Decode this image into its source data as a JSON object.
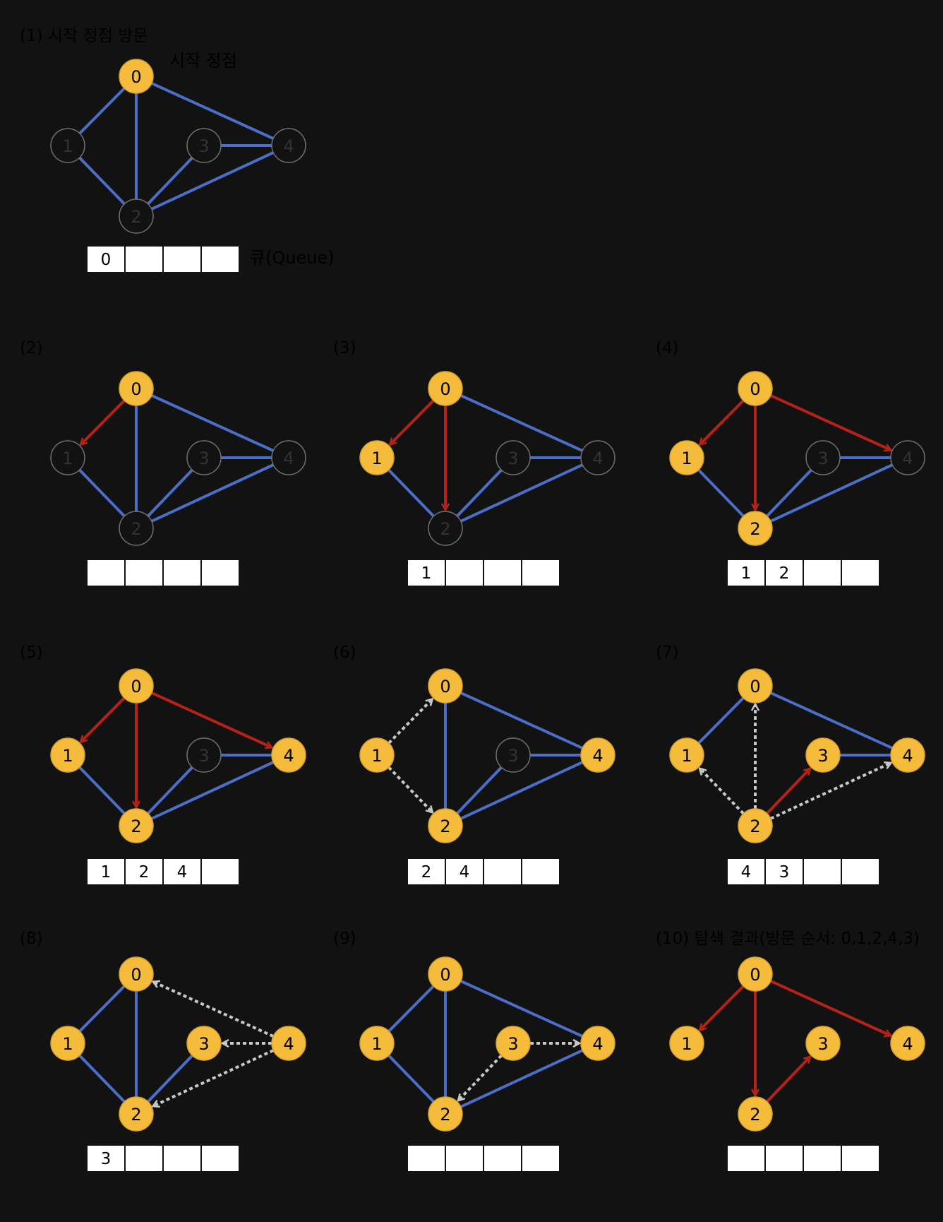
{
  "colors": {
    "background": "#121212",
    "visited": "#F5BC3C",
    "visited_stroke": "#D4A02C",
    "unvisited": "#121212",
    "unvisited_stroke": "#707070",
    "edge": "#4B6FC7",
    "tree_edge": "#B52218",
    "check_edge": "#C8C8C8",
    "queue_cell": "#FFFFFF",
    "text": "#000000"
  },
  "annotations": {
    "start_label": "시작 정점",
    "queue_label": "큐(Queue)"
  },
  "panels": [
    {
      "title": "(1) 시작 정점 방문",
      "visited": [
        "0"
      ],
      "edges": [
        [
          "0",
          "1"
        ],
        [
          "0",
          "2"
        ],
        [
          "0",
          "4"
        ],
        [
          "1",
          "2"
        ],
        [
          "2",
          "3"
        ],
        [
          "3",
          "4"
        ],
        [
          "2",
          "4"
        ]
      ],
      "tree": [],
      "check": [],
      "queue": [
        "0",
        "",
        "",
        ""
      ]
    },
    {
      "title": "(2)",
      "visited": [
        "0"
      ],
      "edges": [
        [
          "0",
          "2"
        ],
        [
          "0",
          "4"
        ],
        [
          "1",
          "2"
        ],
        [
          "2",
          "3"
        ],
        [
          "3",
          "4"
        ],
        [
          "2",
          "4"
        ]
      ],
      "tree": [
        [
          "0",
          "1"
        ]
      ],
      "check": [],
      "queue": [
        "",
        "",
        "",
        ""
      ]
    },
    {
      "title": "(3)",
      "visited": [
        "0",
        "1"
      ],
      "edges": [
        [
          "0",
          "4"
        ],
        [
          "1",
          "2"
        ],
        [
          "2",
          "3"
        ],
        [
          "3",
          "4"
        ],
        [
          "2",
          "4"
        ]
      ],
      "tree": [
        [
          "0",
          "1"
        ],
        [
          "0",
          "2"
        ]
      ],
      "check": [],
      "queue": [
        "1",
        "",
        "",
        ""
      ]
    },
    {
      "title": "(4)",
      "visited": [
        "0",
        "1",
        "2"
      ],
      "edges": [
        [
          "1",
          "2"
        ],
        [
          "2",
          "3"
        ],
        [
          "3",
          "4"
        ],
        [
          "2",
          "4"
        ]
      ],
      "tree": [
        [
          "0",
          "1"
        ],
        [
          "0",
          "2"
        ],
        [
          "0",
          "4"
        ]
      ],
      "check": [],
      "queue": [
        "1",
        "2",
        "",
        ""
      ]
    },
    {
      "title": "(5)",
      "visited": [
        "0",
        "1",
        "2",
        "4"
      ],
      "edges": [
        [
          "1",
          "2"
        ],
        [
          "2",
          "3"
        ],
        [
          "3",
          "4"
        ],
        [
          "2",
          "4"
        ]
      ],
      "tree": [
        [
          "0",
          "1"
        ],
        [
          "0",
          "2"
        ],
        [
          "0",
          "4"
        ]
      ],
      "check": [],
      "queue": [
        "1",
        "2",
        "4",
        ""
      ]
    },
    {
      "title": "(6)",
      "visited": [
        "0",
        "1",
        "2",
        "4"
      ],
      "edges": [
        [
          "0",
          "2"
        ],
        [
          "0",
          "4"
        ],
        [
          "2",
          "3"
        ],
        [
          "3",
          "4"
        ],
        [
          "2",
          "4"
        ]
      ],
      "tree": [],
      "check": [
        [
          "1",
          "0"
        ],
        [
          "1",
          "2"
        ]
      ],
      "queue": [
        "2",
        "4",
        "",
        ""
      ]
    },
    {
      "title": "(7)",
      "visited": [
        "0",
        "1",
        "2",
        "3",
        "4"
      ],
      "edges": [
        [
          "0",
          "1"
        ],
        [
          "0",
          "4"
        ],
        [
          "3",
          "4"
        ]
      ],
      "tree": [
        [
          "2",
          "3"
        ]
      ],
      "check": [
        [
          "2",
          "1"
        ],
        [
          "2",
          "0"
        ],
        [
          "2",
          "4"
        ]
      ],
      "queue": [
        "4",
        "3",
        "",
        ""
      ]
    },
    {
      "title": "(8)",
      "visited": [
        "0",
        "1",
        "2",
        "3",
        "4"
      ],
      "edges": [
        [
          "0",
          "1"
        ],
        [
          "0",
          "2"
        ],
        [
          "1",
          "2"
        ],
        [
          "2",
          "3"
        ]
      ],
      "tree": [],
      "check": [
        [
          "4",
          "0"
        ],
        [
          "4",
          "3"
        ],
        [
          "4",
          "2"
        ]
      ],
      "queue": [
        "3",
        "",
        "",
        ""
      ]
    },
    {
      "title": "(9)",
      "visited": [
        "0",
        "1",
        "2",
        "3",
        "4"
      ],
      "edges": [
        [
          "0",
          "1"
        ],
        [
          "0",
          "2"
        ],
        [
          "0",
          "4"
        ],
        [
          "1",
          "2"
        ],
        [
          "2",
          "4"
        ]
      ],
      "tree": [],
      "check": [
        [
          "3",
          "4"
        ],
        [
          "3",
          "2"
        ]
      ],
      "queue": [
        "",
        "",
        "",
        ""
      ]
    },
    {
      "title": "(10) 탐색 결과(방문 순서: 0,1,2,4,3)",
      "visited": [
        "0",
        "1",
        "2",
        "3",
        "4"
      ],
      "edges": [],
      "tree": [
        [
          "0",
          "1"
        ],
        [
          "0",
          "2"
        ],
        [
          "0",
          "4"
        ],
        [
          "2",
          "3"
        ]
      ],
      "check": [],
      "queue": [
        "",
        "",
        "",
        ""
      ]
    }
  ]
}
